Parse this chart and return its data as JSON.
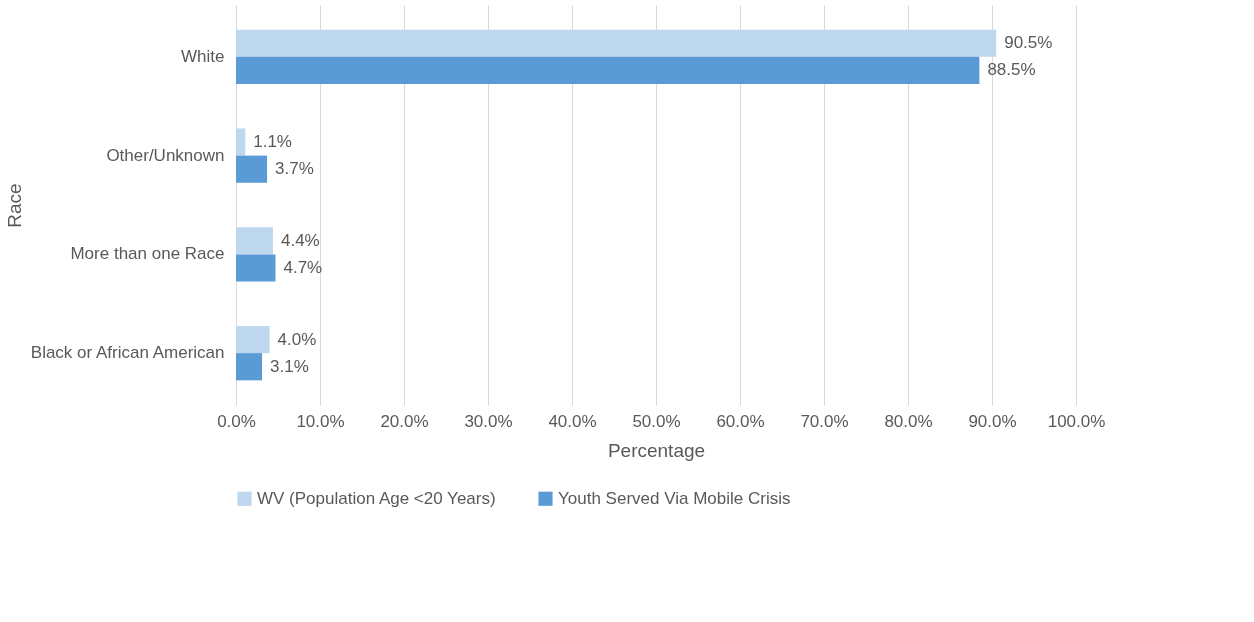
{
  "chart_data": {
    "type": "bar",
    "orientation": "horizontal",
    "xlabel": "Percentage",
    "ylabel": "Race",
    "categories": [
      "White",
      "Other/Unknown",
      "More than one Race",
      "Black or African American"
    ],
    "series": [
      {
        "name": "WV (Population Age <20 Years)",
        "color": "#bdd7ee",
        "values": [
          90.5,
          1.1,
          4.4,
          4.0
        ],
        "value_labels": [
          "90.5%",
          "1.1%",
          "4.4%",
          "4.0%"
        ]
      },
      {
        "name": "Youth Served Via Mobile Crisis",
        "color": "#5b9bd5",
        "values": [
          88.5,
          3.7,
          4.7,
          3.1
        ],
        "value_labels": [
          "88.5%",
          "3.7%",
          "4.7%",
          "3.1%"
        ]
      }
    ],
    "xlim": [
      0,
      100
    ],
    "xticks": [
      {
        "value": 0,
        "label": "0.0%"
      },
      {
        "value": 10,
        "label": "10.0%"
      },
      {
        "value": 20,
        "label": "20.0%"
      },
      {
        "value": 30,
        "label": "30.0%"
      },
      {
        "value": 40,
        "label": "40.0%"
      },
      {
        "value": 50,
        "label": "50.0%"
      },
      {
        "value": 60,
        "label": "60.0%"
      },
      {
        "value": 70,
        "label": "70.0%"
      },
      {
        "value": 80,
        "label": "80.0%"
      },
      {
        "value": 90,
        "label": "90.0%"
      },
      {
        "value": 100,
        "label": "100.0%"
      }
    ],
    "grid": "x",
    "legend": "bottom"
  }
}
